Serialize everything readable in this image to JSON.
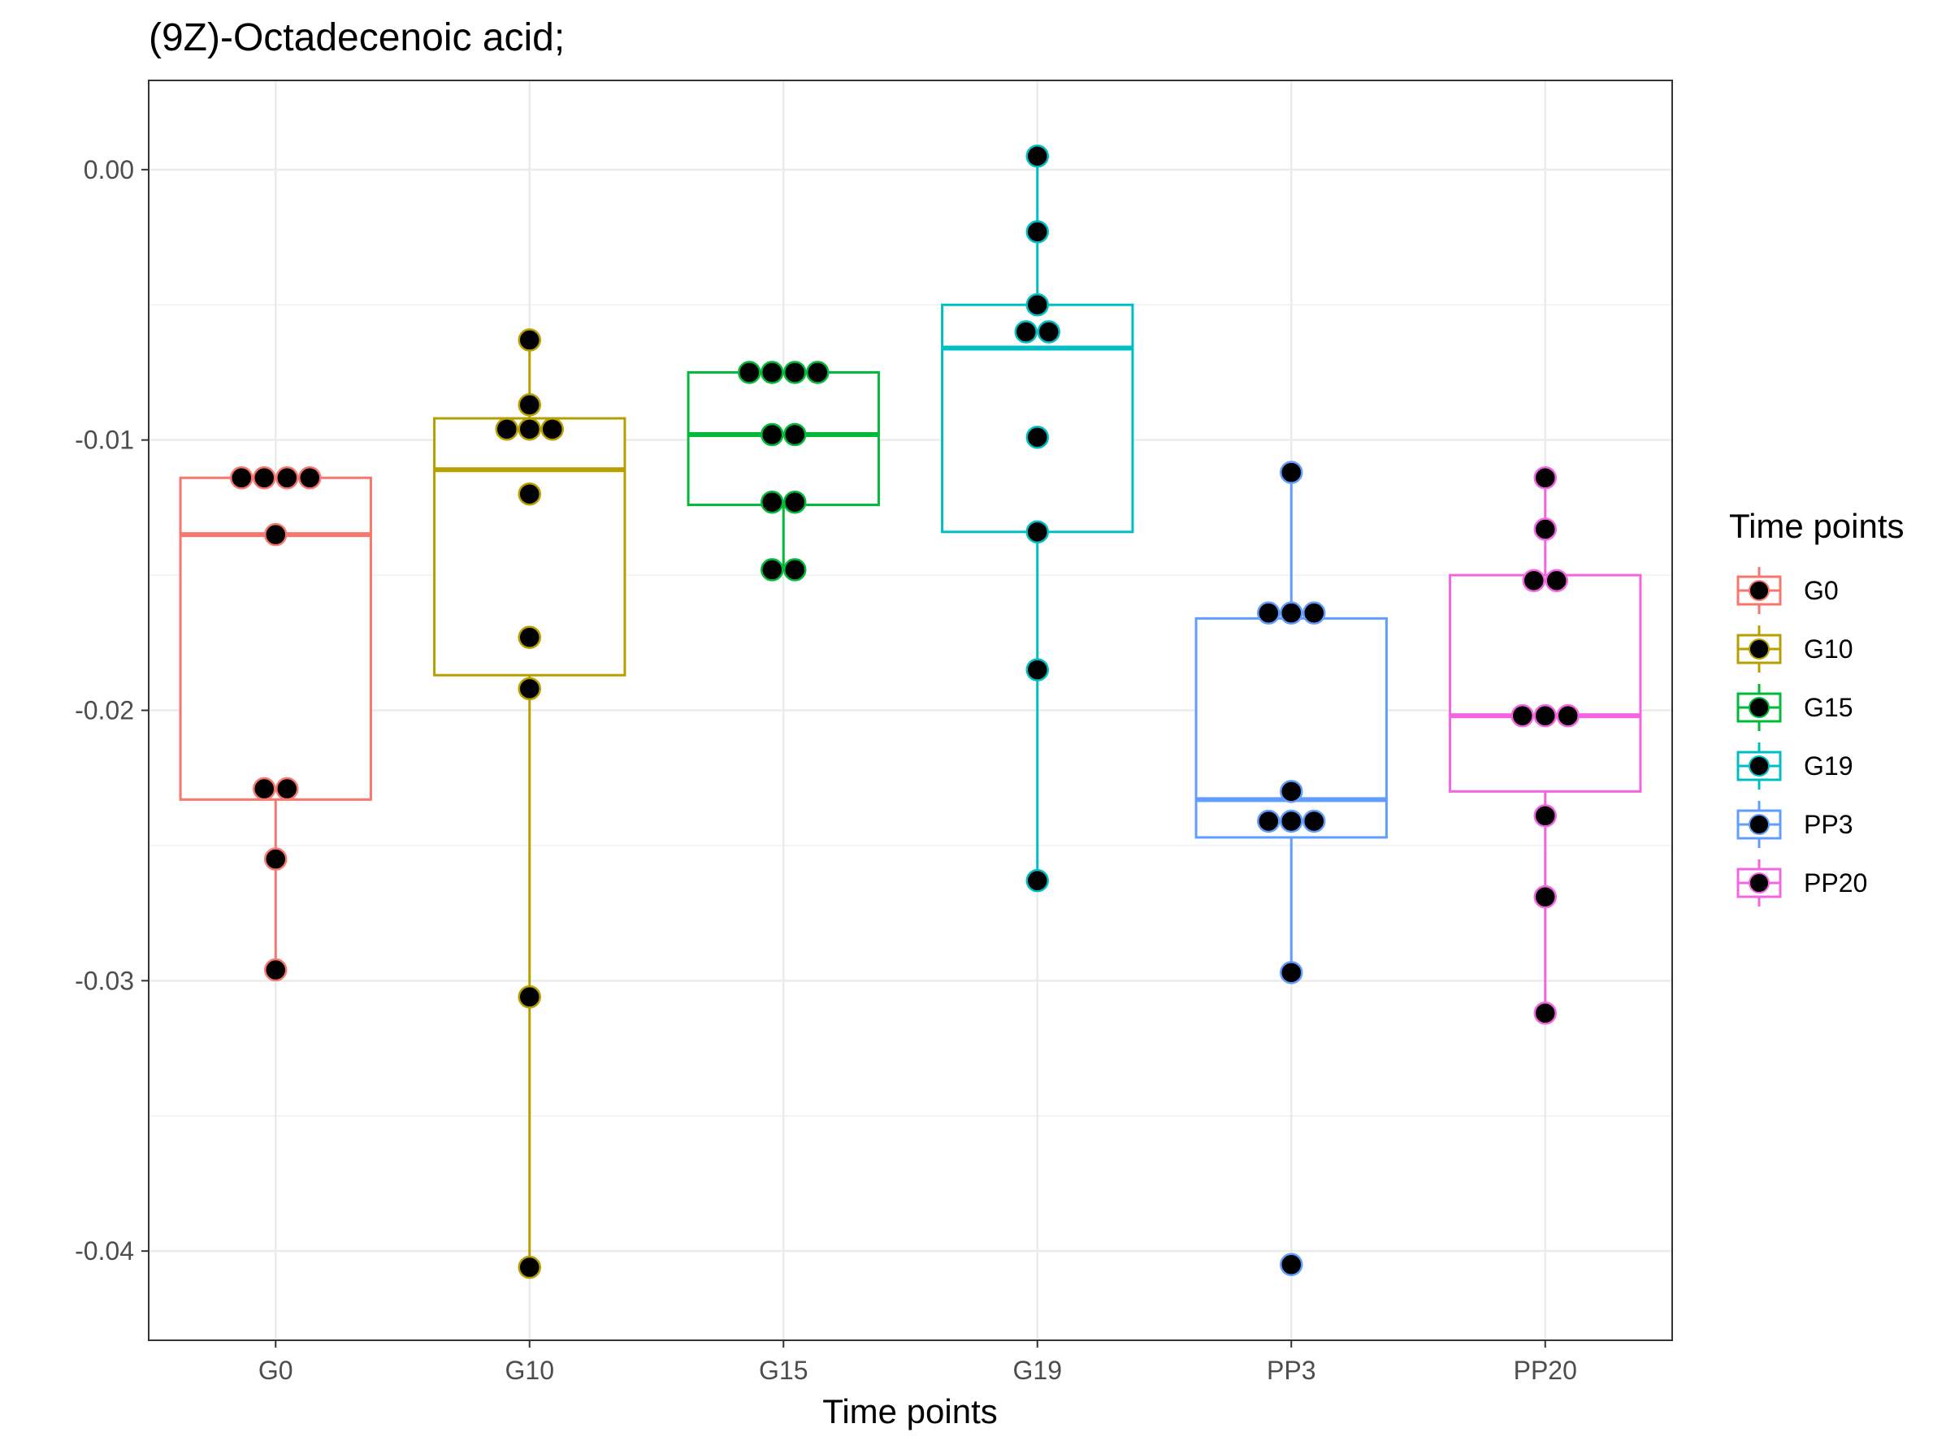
{
  "chart_data": {
    "type": "boxplot",
    "title": "(9Z)-Octadecenoic acid;",
    "xlabel": "Time points",
    "ylabel": "",
    "categories": [
      "G0",
      "G10",
      "G15",
      "G19",
      "PP3",
      "PP20"
    ],
    "ylim": [
      -0.0433,
      0.0033
    ],
    "yticks": [
      0.0,
      -0.01,
      -0.02,
      -0.03,
      -0.04
    ],
    "ytick_labels": [
      "0.00",
      "-0.01",
      "-0.02",
      "-0.03",
      "-0.04"
    ],
    "grid": true,
    "legend": {
      "title": "Time points",
      "position": "right",
      "entries": [
        "G0",
        "G10",
        "G15",
        "G19",
        "PP3",
        "PP20"
      ]
    },
    "series": [
      {
        "name": "G0",
        "color": "#F8766D",
        "box": {
          "q1": -0.0233,
          "median": -0.0135,
          "q3": -0.0114,
          "whisker_low": -0.0296,
          "whisker_high": -0.0114
        },
        "points": [
          -0.0114,
          -0.0114,
          -0.0114,
          -0.0114,
          -0.0135,
          -0.0229,
          -0.0229,
          -0.0255,
          -0.0296
        ]
      },
      {
        "name": "G10",
        "color": "#B79F00",
        "box": {
          "q1": -0.0187,
          "median": -0.0111,
          "q3": -0.0092,
          "whisker_low": -0.0406,
          "whisker_high": -0.0063
        },
        "points": [
          -0.0063,
          -0.0087,
          -0.0096,
          -0.0096,
          -0.0096,
          -0.012,
          -0.0173,
          -0.0192,
          -0.0306,
          -0.0406
        ]
      },
      {
        "name": "G15",
        "color": "#00BA38",
        "box": {
          "q1": -0.0124,
          "median": -0.0098,
          "q3": -0.0075,
          "whisker_low": -0.0148,
          "whisker_high": -0.0075
        },
        "points": [
          -0.0075,
          -0.0075,
          -0.0075,
          -0.0075,
          -0.0098,
          -0.0098,
          -0.0123,
          -0.0123,
          -0.0148,
          -0.0148
        ]
      },
      {
        "name": "G19",
        "color": "#00BFC4",
        "box": {
          "q1": -0.0134,
          "median": -0.0066,
          "q3": -0.005,
          "whisker_low": -0.0263,
          "whisker_high": 0.0005
        },
        "points": [
          0.0005,
          -0.0023,
          -0.005,
          -0.006,
          -0.006,
          -0.0099,
          -0.0134,
          -0.0185,
          -0.0263
        ]
      },
      {
        "name": "PP3",
        "color": "#619CFF",
        "box": {
          "q1": -0.0247,
          "median": -0.0233,
          "q3": -0.0166,
          "whisker_low": -0.0297,
          "whisker_high": -0.0112
        },
        "points": [
          -0.0112,
          -0.0164,
          -0.0164,
          -0.0164,
          -0.023,
          -0.0241,
          -0.0241,
          -0.0241,
          -0.0297,
          -0.0405
        ]
      },
      {
        "name": "PP20",
        "color": "#F564E3",
        "box": {
          "q1": -0.023,
          "median": -0.0202,
          "q3": -0.015,
          "whisker_low": -0.0312,
          "whisker_high": -0.0114
        },
        "points": [
          -0.0114,
          -0.0133,
          -0.0152,
          -0.0152,
          -0.0202,
          -0.0202,
          -0.0202,
          -0.0239,
          -0.0269,
          -0.0312
        ]
      }
    ]
  }
}
